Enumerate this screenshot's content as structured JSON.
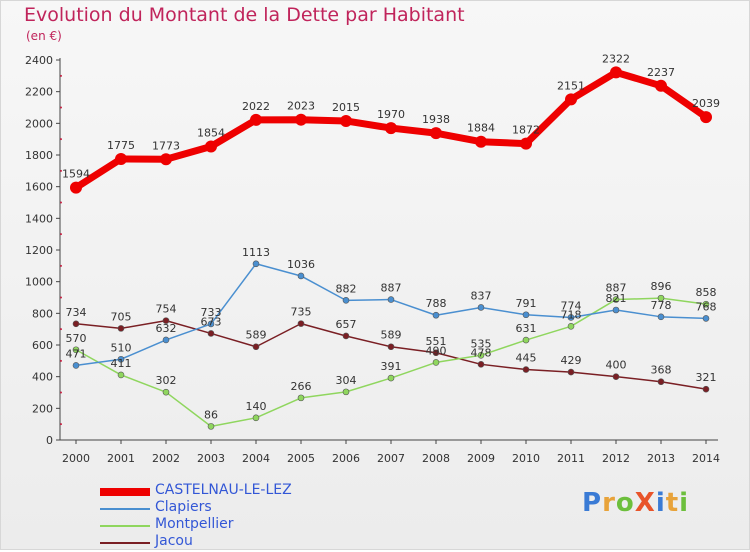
{
  "title": "Evolution du Montant de la Dette par Habitant",
  "subtitle": "(en €)",
  "logo": "ProXiti",
  "chart_data": {
    "type": "line",
    "title": "Evolution du Montant de la Dette par Habitant",
    "subtitle": "(en €)",
    "xlabel": "",
    "ylabel": "",
    "categories": [
      "2000",
      "2001",
      "2002",
      "2003",
      "2004",
      "2005",
      "2006",
      "2007",
      "2008",
      "2009",
      "2010",
      "2011",
      "2012",
      "2013",
      "2014"
    ],
    "ylim": [
      0,
      2400
    ],
    "yticks": [
      0,
      200,
      400,
      600,
      800,
      1000,
      1200,
      1400,
      1600,
      1800,
      2000,
      2200,
      2400
    ],
    "grid": false,
    "legend_position": "bottom-left",
    "series": [
      {
        "name": "CASTELNAU-LE-LEZ",
        "color": "#ee0000",
        "values": [
          1594,
          1775,
          1773,
          1854,
          2022,
          2023,
          2015,
          1970,
          1938,
          1884,
          1872,
          2151,
          2322,
          2237,
          2039
        ]
      },
      {
        "name": "Clapiers",
        "color": "#4a8fd0",
        "values": [
          471,
          510,
          632,
          733,
          1113,
          1036,
          882,
          887,
          788,
          837,
          791,
          774,
          821,
          778,
          768
        ]
      },
      {
        "name": "Montpellier",
        "color": "#8fd65e",
        "values": [
          570,
          411,
          302,
          86,
          140,
          266,
          304,
          391,
          490,
          535,
          631,
          718,
          887,
          896,
          858
        ]
      },
      {
        "name": "Jacou",
        "color": "#7a1f24",
        "values": [
          734,
          705,
          754,
          673,
          589,
          735,
          657,
          589,
          551,
          478,
          445,
          429,
          400,
          368,
          321
        ]
      }
    ],
    "data_labels": [
      [
        "1594",
        "1775",
        "1773",
        "1854",
        "2022",
        "2023",
        "2015",
        "1970",
        "1938",
        "1884",
        "1872",
        "2151",
        "2322",
        "2237",
        "2039"
      ],
      [
        "471",
        "510",
        "632",
        "733",
        "1113",
        "1036",
        "882",
        "887",
        "788",
        "837",
        "791",
        "774",
        "821",
        "778",
        "768"
      ],
      [
        "570",
        "411",
        "302",
        "86",
        "140",
        "266",
        "304",
        "391",
        "490",
        "535",
        "631",
        "718",
        "887",
        "896",
        "858"
      ],
      [
        "734",
        "705",
        "754",
        "673",
        "589",
        "735",
        "657",
        "589",
        "551",
        "478",
        "445",
        "429",
        "400",
        "368",
        "321"
      ]
    ]
  }
}
